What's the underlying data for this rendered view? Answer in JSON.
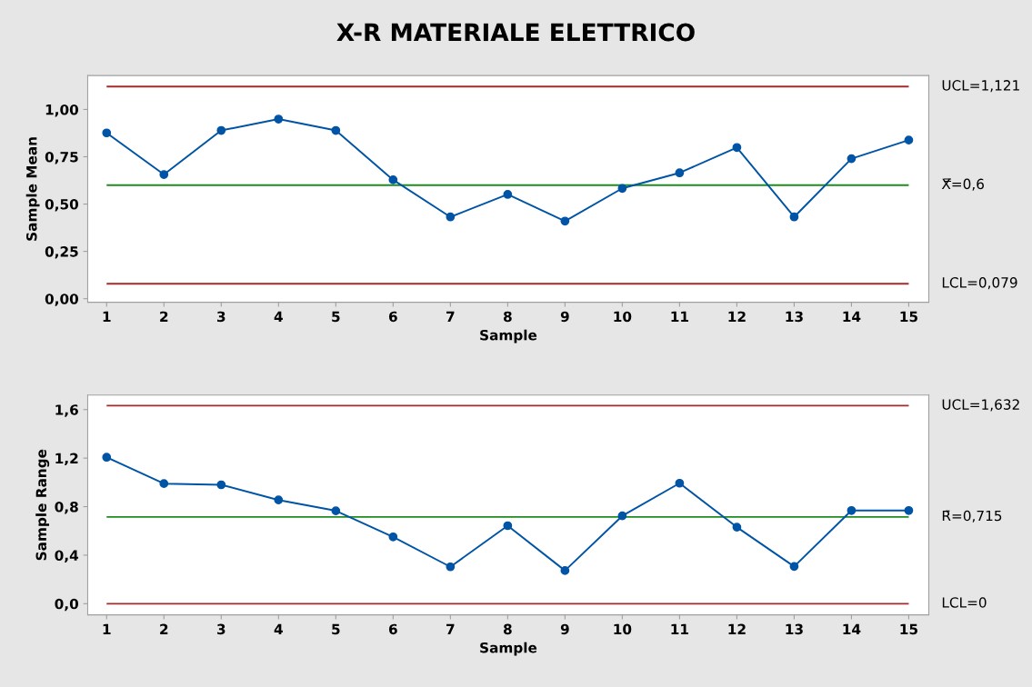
{
  "chart_data": [
    {
      "type": "line",
      "title": "X-R MATERIALE ELETTRICO",
      "xlabel": "Sample",
      "ylabel": "Sample Mean",
      "x": [
        1,
        2,
        3,
        4,
        5,
        6,
        7,
        8,
        9,
        10,
        11,
        12,
        13,
        14,
        15
      ],
      "series": [
        {
          "color": "#0054a6",
          "values": [
            0.876,
            0.656,
            0.889,
            0.949,
            0.889,
            0.628,
            0.432,
            0.551,
            0.41,
            0.583,
            0.665,
            0.799,
            0.432,
            0.74,
            0.838
          ]
        }
      ],
      "marker": "circle",
      "line_style": "solid",
      "grid": false,
      "legend": false,
      "xlim": [
        0.67,
        15.35
      ],
      "xticks": [
        1,
        2,
        3,
        4,
        5,
        6,
        7,
        8,
        9,
        10,
        11,
        12,
        13,
        14,
        15
      ],
      "ylim": [
        -0.019,
        1.179
      ],
      "yticks": [
        {
          "value": 0,
          "label": "0,00"
        },
        {
          "value": 0.25,
          "label": "0,25"
        },
        {
          "value": 0.5,
          "label": "0,50"
        },
        {
          "value": 0.75,
          "label": "0,75"
        },
        {
          "value": 1.0,
          "label": "1,00"
        }
      ],
      "ref_lines": [
        {
          "axis": "y",
          "value": 1.121,
          "label": "UCL=1,121",
          "color": "#a52a2a"
        },
        {
          "axis": "y",
          "value": 0.6,
          "label": "X̿=0,6",
          "color": "#1e8c1e"
        },
        {
          "axis": "y",
          "value": 0.079,
          "label": "LCL=0,079",
          "color": "#a52a2a"
        }
      ]
    },
    {
      "type": "line",
      "xlabel": "Sample",
      "ylabel": "Sample Range",
      "x": [
        1,
        2,
        3,
        4,
        5,
        6,
        7,
        8,
        9,
        10,
        11,
        12,
        13,
        14,
        15
      ],
      "series": [
        {
          "color": "#0054a6",
          "values": [
            1.207,
            0.99,
            0.98,
            0.855,
            0.766,
            0.551,
            0.304,
            0.643,
            0.273,
            0.724,
            0.993,
            0.631,
            0.307,
            0.768,
            0.768
          ]
        }
      ],
      "marker": "circle",
      "line_style": "solid",
      "grid": false,
      "legend": false,
      "xlim": [
        0.67,
        15.35
      ],
      "xticks": [
        1,
        2,
        3,
        4,
        5,
        6,
        7,
        8,
        9,
        10,
        11,
        12,
        13,
        14,
        15
      ],
      "ylim": [
        -0.092,
        1.72
      ],
      "yticks": [
        {
          "value": 0,
          "label": "0,0"
        },
        {
          "value": 0.4,
          "label": "0,4"
        },
        {
          "value": 0.8,
          "label": "0,8"
        },
        {
          "value": 1.2,
          "label": "1,2"
        },
        {
          "value": 1.6,
          "label": "1,6"
        }
      ],
      "ref_lines": [
        {
          "axis": "y",
          "value": 1.632,
          "label": "UCL=1,632",
          "color": "#a52a2a"
        },
        {
          "axis": "y",
          "value": 0.715,
          "label": "R̄=0,715",
          "color": "#1e8c1e"
        },
        {
          "axis": "y",
          "value": 0,
          "label": "LCL=0",
          "color": "#a52a2a"
        }
      ]
    }
  ]
}
